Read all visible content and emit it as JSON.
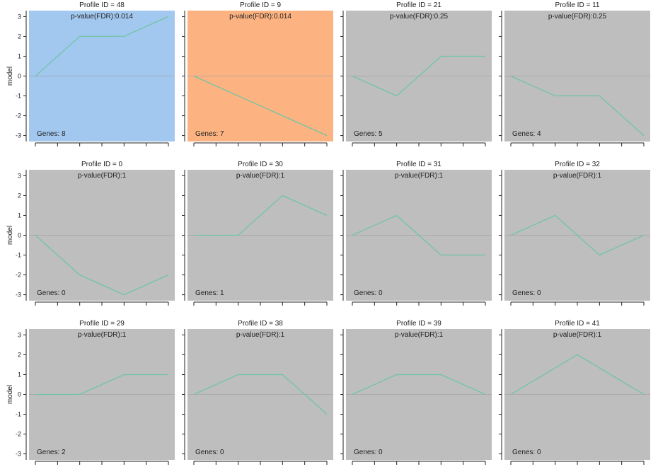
{
  "chart_data": {
    "type": "line",
    "x_points": 7,
    "ylim": [
      -3.3,
      3.3
    ],
    "yticks": [
      3,
      2,
      1,
      0,
      -1,
      -2,
      -3
    ],
    "ylabel": "model",
    "colors": {
      "line": "#6fc5a4",
      "zero_line": "#a3a3a3",
      "panel_default": "#bebebe",
      "highlight_blue": "#a3c8f0",
      "highlight_orange": "#fdb381"
    },
    "panels": [
      {
        "title": "Profile ID = 48",
        "pvalue": "p-value(FDR):0.014",
        "genes": "Genes: 8",
        "bg": "blue",
        "x": [
          0,
          2,
          4,
          6
        ],
        "y": [
          0,
          2,
          2,
          3
        ]
      },
      {
        "title": "Profile ID = 9",
        "pvalue": "p-value(FDR):0.014",
        "genes": "Genes: 7",
        "bg": "orange",
        "x": [
          0,
          6
        ],
        "y": [
          0,
          -3
        ]
      },
      {
        "title": "Profile ID = 21",
        "pvalue": "p-value(FDR):0.25",
        "genes": "Genes: 5",
        "bg": "gray",
        "x": [
          0,
          2,
          4,
          6
        ],
        "y": [
          0,
          -1,
          1,
          1
        ]
      },
      {
        "title": "Profile ID = 11",
        "pvalue": "p-value(FDR):0.25",
        "genes": "Genes: 4",
        "bg": "gray",
        "x": [
          0,
          2,
          4,
          6
        ],
        "y": [
          0,
          -1,
          -1,
          -3
        ]
      },
      {
        "title": "Profile ID = 0",
        "pvalue": "p-value(FDR):1",
        "genes": "Genes: 0",
        "bg": "gray",
        "x": [
          0,
          2,
          4,
          6
        ],
        "y": [
          0,
          -2,
          -3,
          -2
        ]
      },
      {
        "title": "Profile ID = 30",
        "pvalue": "p-value(FDR):1",
        "genes": "Genes: 1",
        "bg": "gray",
        "x": [
          0,
          2,
          4,
          6
        ],
        "y": [
          0,
          0,
          2,
          1
        ]
      },
      {
        "title": "Profile ID = 31",
        "pvalue": "p-value(FDR):1",
        "genes": "Genes: 0",
        "bg": "gray",
        "x": [
          0,
          2,
          4,
          6
        ],
        "y": [
          0,
          1,
          -1,
          -1
        ]
      },
      {
        "title": "Profile ID = 32",
        "pvalue": "p-value(FDR):1",
        "genes": "Genes: 0",
        "bg": "gray",
        "x": [
          0,
          2,
          4,
          6
        ],
        "y": [
          0,
          1,
          -1,
          0
        ]
      },
      {
        "title": "Profile ID = 29",
        "pvalue": "p-value(FDR):1",
        "genes": "Genes: 2",
        "bg": "gray",
        "x": [
          0,
          2,
          4,
          6
        ],
        "y": [
          0,
          0,
          1,
          1
        ]
      },
      {
        "title": "Profile ID = 38",
        "pvalue": "p-value(FDR):1",
        "genes": "Genes: 0",
        "bg": "gray",
        "x": [
          0,
          2,
          4,
          6
        ],
        "y": [
          0,
          1,
          1,
          -1
        ]
      },
      {
        "title": "Profile ID = 39",
        "pvalue": "p-value(FDR):1",
        "genes": "Genes: 0",
        "bg": "gray",
        "x": [
          0,
          2,
          4,
          6
        ],
        "y": [
          0,
          1,
          1,
          0
        ]
      },
      {
        "title": "Profile ID = 41",
        "pvalue": "p-value(FDR):1",
        "genes": "Genes: 0",
        "bg": "gray",
        "x": [
          0,
          3,
          6
        ],
        "y": [
          0,
          2,
          0
        ]
      }
    ]
  }
}
